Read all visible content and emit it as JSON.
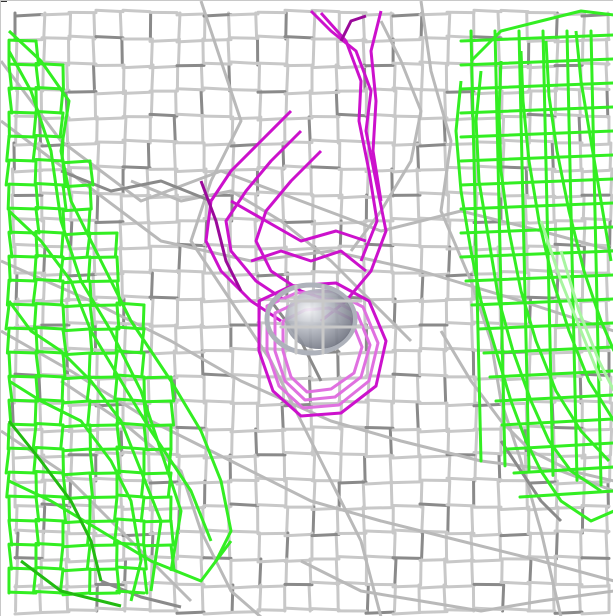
{
  "viewer": {
    "background": "#ffffff",
    "colors": {
      "grid": "#c8c8c8",
      "grid_shadow": "#8a8a8a",
      "mesh_grey": "#b9b9b9",
      "green": "#33ee22",
      "green_dark": "#22bb11",
      "green_light": "#a8f5a0",
      "magenta": "#cc11cc",
      "magenta_dark": "#9a0a9a",
      "magenta_light": "#e070e0",
      "sphere": "#aeb2bb",
      "sphere_highlight": "#e4e6ea"
    },
    "objects": [
      {
        "name": "grey-density-mesh",
        "color_key": "mesh_grey"
      },
      {
        "name": "green-left-mesh",
        "color_key": "green"
      },
      {
        "name": "green-right-mesh",
        "color_key": "green"
      },
      {
        "name": "magenta-mesh",
        "color_key": "magenta"
      },
      {
        "name": "atom-sphere",
        "color_key": "sphere"
      }
    ]
  }
}
